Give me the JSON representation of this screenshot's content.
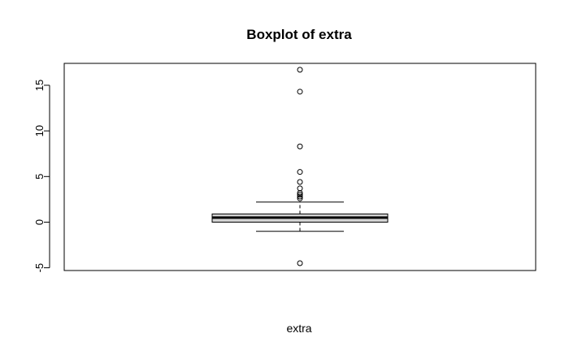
{
  "chart_data": {
    "type": "box",
    "title": "Boxplot of extra",
    "xlabel": "extra",
    "ylabel": "",
    "ylim": [
      -5.3,
      17.4
    ],
    "yticks": [
      -5,
      0,
      5,
      10,
      15
    ],
    "grid": false,
    "legend": "none",
    "box": {
      "whisker_low": -1.0,
      "q1": 0.0,
      "median": 0.5,
      "q3": 0.9,
      "whisker_high": 2.2,
      "fill": "#d3d3d3"
    },
    "outliers": [
      -4.5,
      2.6,
      2.8,
      3.0,
      3.2,
      3.7,
      4.4,
      5.5,
      8.3,
      14.3,
      16.7
    ]
  }
}
